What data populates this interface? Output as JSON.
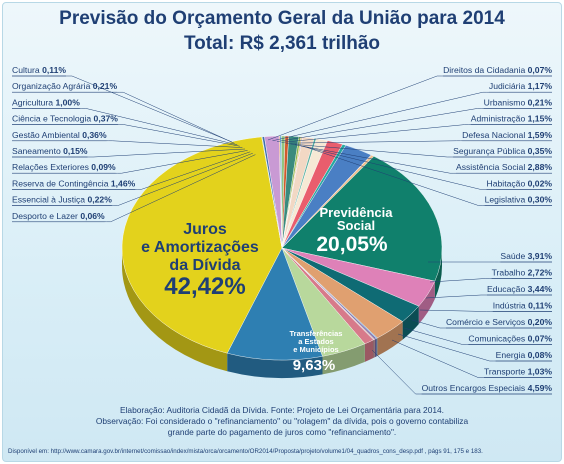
{
  "title": "Previsão do Orçamento Geral da União para 2014",
  "subtitle": "Total: R$ 2,361 trilhão",
  "colors": {
    "title": "#1f3f74",
    "juros": "#e3d21c",
    "previdencia": "#10806c",
    "transferencias": "#2e7fb2",
    "outros_encargos": "#b8d89c",
    "saude": "#de81b8",
    "trabalho": "#0f6b74"
  },
  "chart_data": {
    "type": "pie",
    "title": "Previsão do Orçamento Geral da União para 2014",
    "unit": "%",
    "slices": [
      {
        "label": "Juros e Amortizações da Dívida",
        "value": 42.42,
        "color": "#e3d21c"
      },
      {
        "label": "Desporto e Lazer",
        "value": 0.06,
        "color": "#6db04a"
      },
      {
        "label": "Essencial à Justiça",
        "value": 0.22,
        "color": "#3f6fb0"
      },
      {
        "label": "Reserva de Contingência",
        "value": 1.46,
        "color": "#c99ad4"
      },
      {
        "label": "Relações Exteriores",
        "value": 0.09,
        "color": "#e07a3a"
      },
      {
        "label": "Saneamento",
        "value": 0.15,
        "color": "#4aa0d0"
      },
      {
        "label": "Gestão Ambiental",
        "value": 0.36,
        "color": "#93c47d"
      },
      {
        "label": "Ciência e Tecnologia",
        "value": 0.37,
        "color": "#d2592c"
      },
      {
        "label": "Agricultura",
        "value": 1.0,
        "color": "#3a8a7d"
      },
      {
        "label": "Organização Agrária",
        "value": 0.21,
        "color": "#8bb64a"
      },
      {
        "label": "Cultura",
        "value": 0.11,
        "color": "#e8b14a"
      },
      {
        "label": "Direitos da Cidadania",
        "value": 0.07,
        "color": "#8a64b0"
      },
      {
        "label": "Judiciária",
        "value": 1.17,
        "color": "#f2d8c4"
      },
      {
        "label": "Urbanismo",
        "value": 0.21,
        "color": "#5ab0a0"
      },
      {
        "label": "Administração",
        "value": 1.15,
        "color": "#f6e9d5"
      },
      {
        "label": "Defesa Nacional",
        "value": 1.59,
        "color": "#e95d6d"
      },
      {
        "label": "Segurança Pública",
        "value": 0.35,
        "color": "#26a9a0"
      },
      {
        "label": "Assistência Social",
        "value": 2.88,
        "color": "#4a7fc4"
      },
      {
        "label": "Habitação",
        "value": 0.02,
        "color": "#d0d0d0"
      },
      {
        "label": "Legislativa",
        "value": 0.3,
        "color": "#f0c090"
      },
      {
        "label": "Previdência Social",
        "value": 20.05,
        "color": "#10806c"
      },
      {
        "label": "Saúde",
        "value": 3.91,
        "color": "#de81b8"
      },
      {
        "label": "Trabalho",
        "value": 2.72,
        "color": "#0f6b74"
      },
      {
        "label": "Educação",
        "value": 3.44,
        "color": "#e0a070"
      },
      {
        "label": "Indústria",
        "value": 0.11,
        "color": "#5e9ad0"
      },
      {
        "label": "Comércio e Serviços",
        "value": 0.2,
        "color": "#7a6aa8"
      },
      {
        "label": "Comunicações",
        "value": 0.07,
        "color": "#c05050"
      },
      {
        "label": "Energia",
        "value": 0.08,
        "color": "#a0a0a0"
      },
      {
        "label": "Transporte",
        "value": 1.03,
        "color": "#d77a8a"
      },
      {
        "label": "Outros Encargos Especiais",
        "value": 4.59,
        "color": "#b8d89c"
      },
      {
        "label": "Transferências a Estados e Municípios",
        "value": 9.63,
        "color": "#2e7fb2"
      }
    ]
  },
  "labels": {
    "left": [
      {
        "name": "Cultura",
        "value": "0,11%"
      },
      {
        "name": "Organização Agrária",
        "value": "0,21%"
      },
      {
        "name": "Agricultura",
        "value": "1,00%"
      },
      {
        "name": "Ciência e Tecnologia",
        "value": "0,37%"
      },
      {
        "name": "Gestão Ambiental",
        "value": "0,36%"
      },
      {
        "name": "Saneamento",
        "value": "0,15%"
      },
      {
        "name": "Relações Exteriores",
        "value": "0,09%"
      },
      {
        "name": "Reserva de Contingência",
        "value": "1,46%"
      },
      {
        "name": "Essencial à Justiça",
        "value": "0,22%"
      },
      {
        "name": "Desporto e Lazer",
        "value": "0,06%"
      }
    ],
    "right_top": [
      {
        "name": "Direitos da Cidadania",
        "value": "0,07%"
      },
      {
        "name": "Judiciária",
        "value": "1,17%"
      },
      {
        "name": "Urbanismo",
        "value": "0,21%"
      },
      {
        "name": "Administração",
        "value": "1,15%"
      },
      {
        "name": "Defesa Nacional",
        "value": "1,59%"
      },
      {
        "name": "Segurança Pública",
        "value": "0,35%"
      },
      {
        "name": "Assistência Social",
        "value": "2,88%"
      },
      {
        "name": "Habitação",
        "value": "0,02%"
      },
      {
        "name": "Legislativa",
        "value": "0,30%"
      }
    ],
    "right_bottom": [
      {
        "name": "Saúde",
        "value": "3,91%"
      },
      {
        "name": "Trabalho",
        "value": "2,72%"
      },
      {
        "name": "Educação",
        "value": "3,44%"
      },
      {
        "name": "Indústria",
        "value": "0,11%"
      },
      {
        "name": "Comércio e Serviços",
        "value": "0,20%"
      },
      {
        "name": "Comunicações",
        "value": "0,07%"
      },
      {
        "name": "Energia",
        "value": "0,08%"
      },
      {
        "name": "Transporte",
        "value": "1,03%"
      },
      {
        "name": "Outros Encargos Especiais",
        "value": "4,59%"
      }
    ]
  },
  "big_labels": {
    "juros_line1": "Juros",
    "juros_line2": "e Amortizações",
    "juros_line3": "da Dívida",
    "juros_value": "42,42%",
    "prev_line1": "Previdência",
    "prev_line2": "Social",
    "prev_value": "20,05%",
    "transf_line1": "Transferências",
    "transf_line2": "a Estados",
    "transf_line3": "e Municípios",
    "transf_value": "9,63%"
  },
  "footer": {
    "line1": "Elaboração: Auditoria Cidadã da Dívida. Fonte: Projeto de Lei Orçamentária para 2014.",
    "line2": "Observação:  Foi considerado o \"refinanciamento\" ou \"rolagem\" da dívida, pois o governo contabiliza",
    "line3": "grande parte do pagamento de juros como \"refinanciamento\".",
    "source": "Disponível em: http://www.camara.gov.br/internet/comissao/index/mista/orca/orcamento/OR2014/Proposta/projeto/volume1/04_quadros_cons_desp.pdf , págs 91, 175 e 183."
  }
}
